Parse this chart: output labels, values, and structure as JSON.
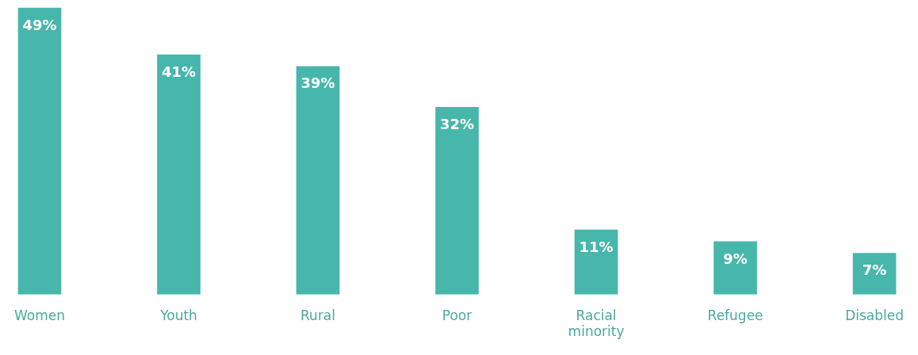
{
  "chart_data": {
    "type": "bar",
    "categories": [
      "Women",
      "Youth",
      "Rural",
      "Poor",
      "Racial minority",
      "Refugee",
      "Disabled"
    ],
    "values": [
      49,
      41,
      39,
      32,
      11,
      9,
      7
    ],
    "value_labels": [
      "49%",
      "41%",
      "39%",
      "32%",
      "11%",
      "9%",
      "7%"
    ],
    "color": "#47b6ab",
    "grid": false,
    "legend": false
  }
}
